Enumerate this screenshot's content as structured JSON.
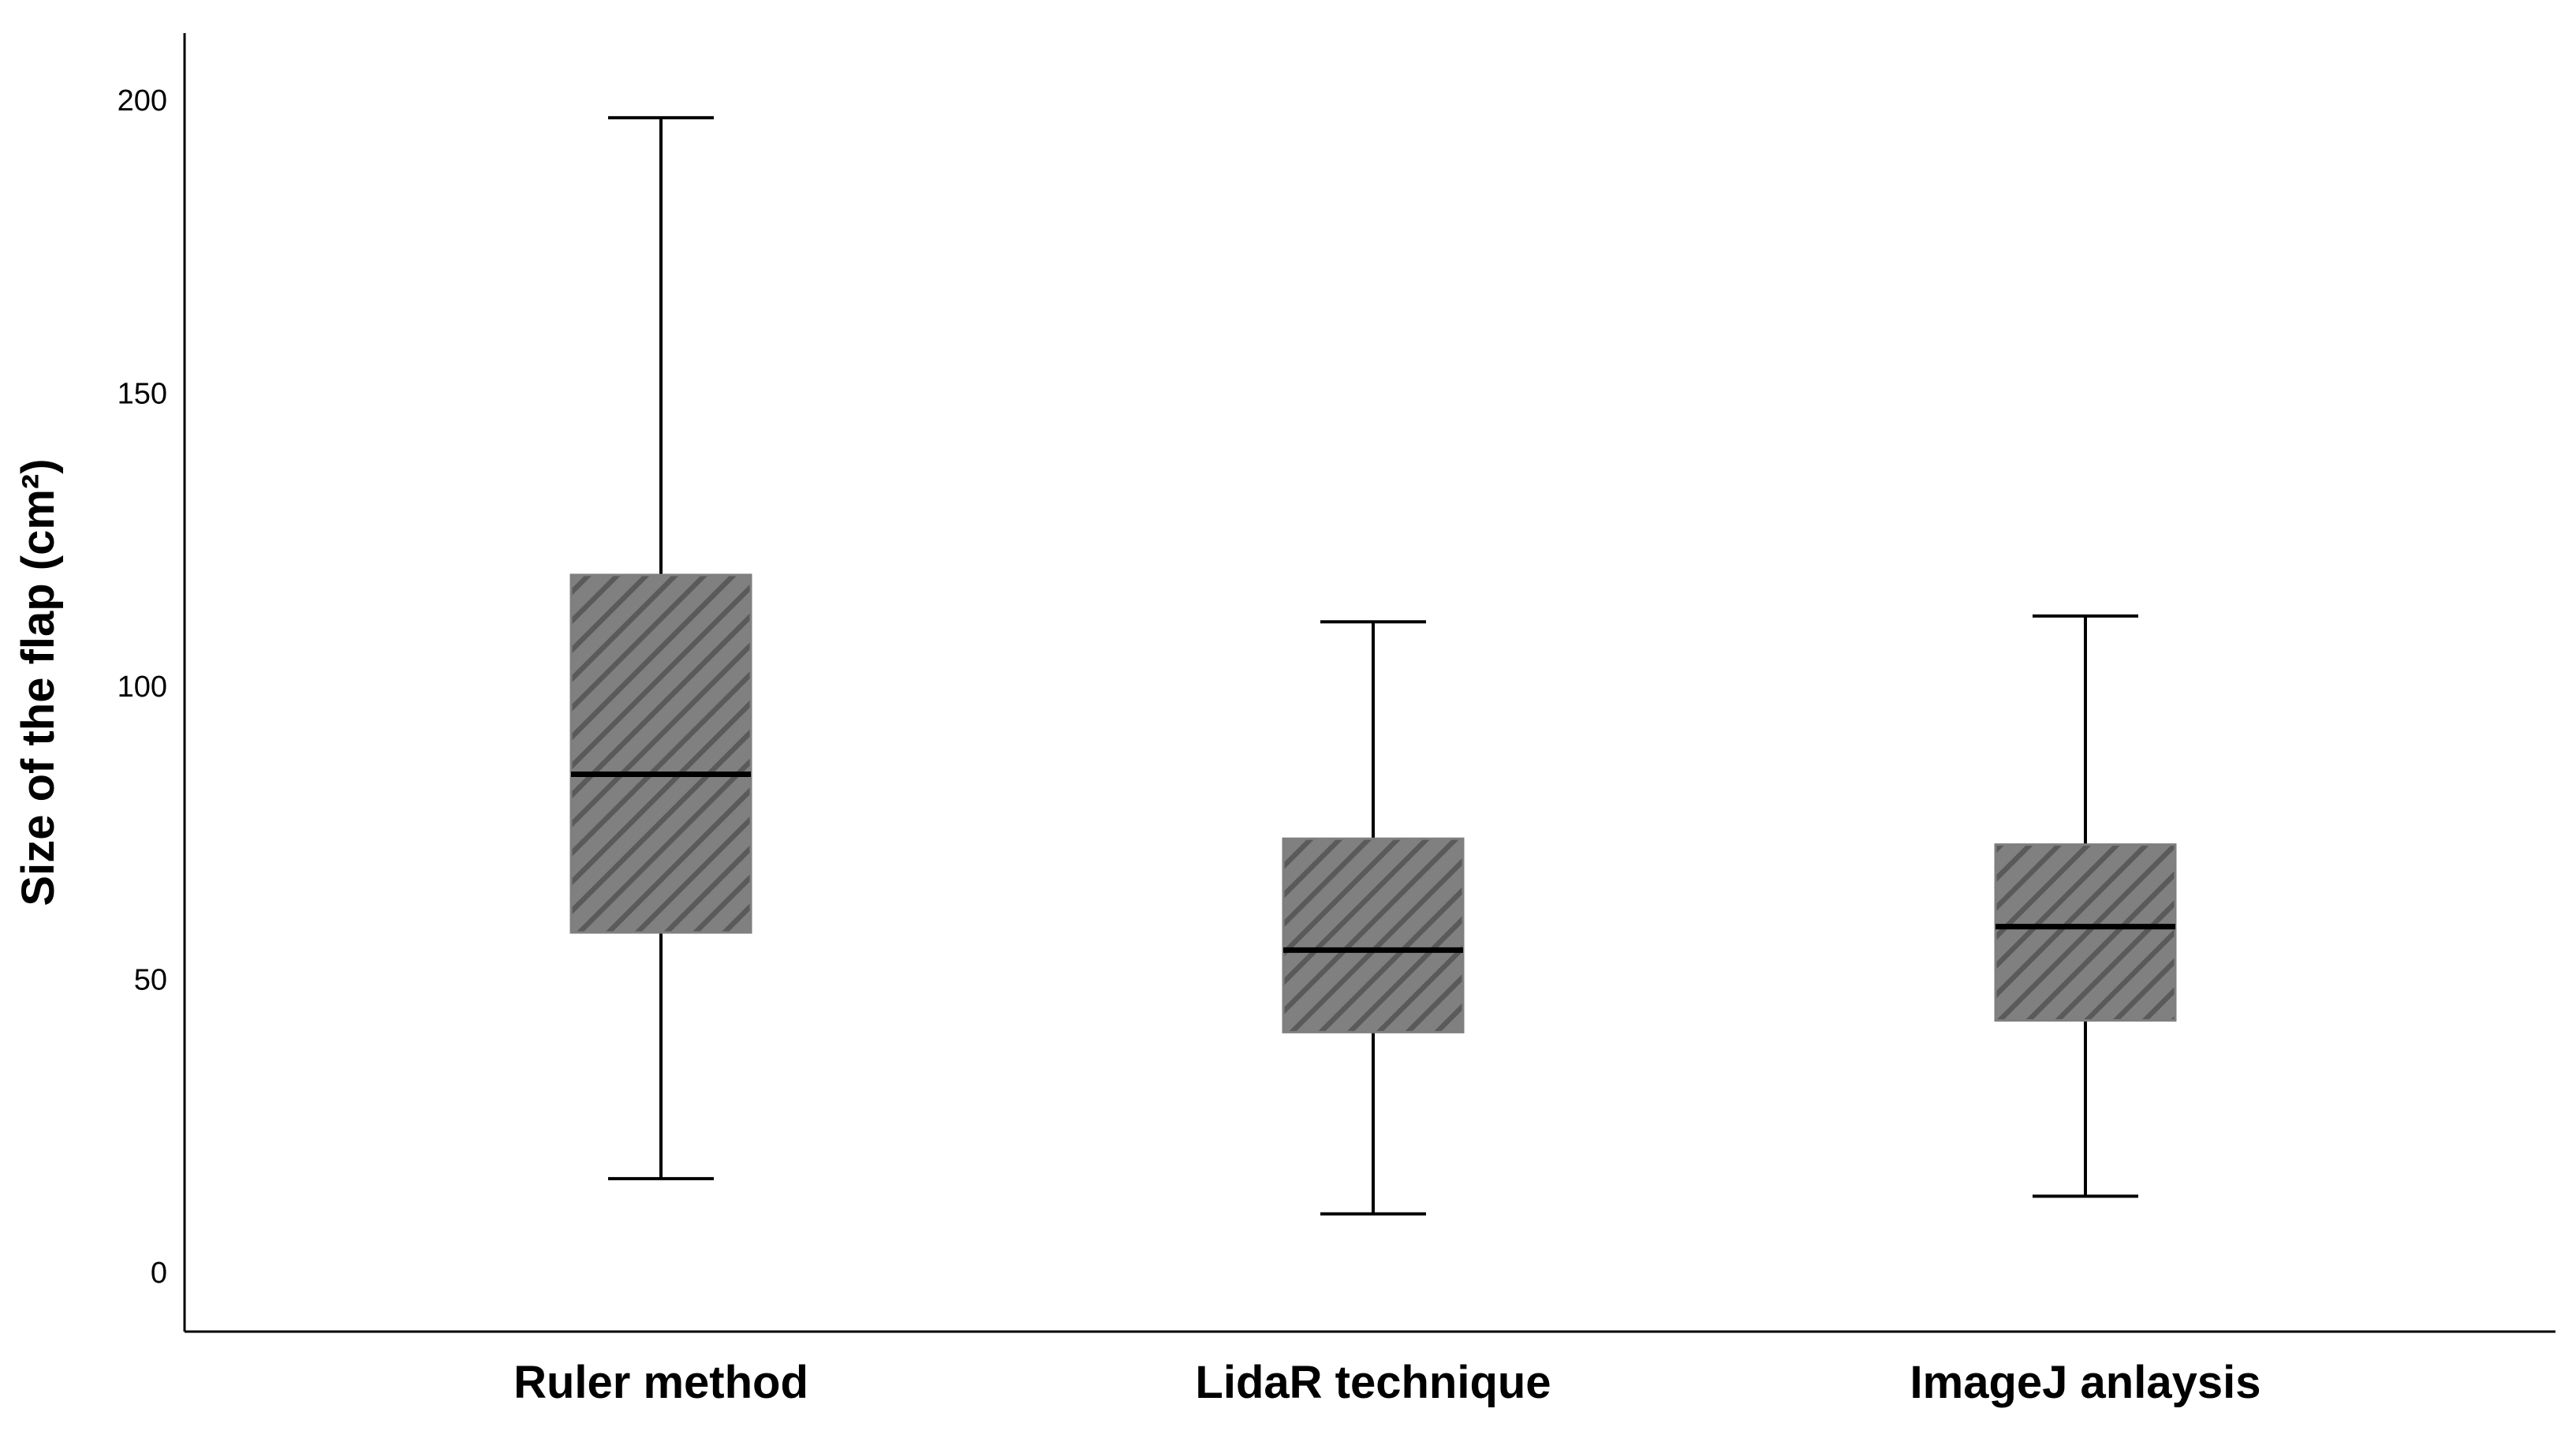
{
  "chart_data": {
    "type": "boxplot",
    "title": "",
    "xlabel": "",
    "ylabel": "Size of the flap (cm²)",
    "ylim": [
      -10,
      212
    ],
    "yticks": [
      "0",
      "50",
      "100",
      "150",
      "200"
    ],
    "grid": false,
    "fill_color": "#808080",
    "hatch_color": "#5a5a5a",
    "box_border_color": "#7f7f7f",
    "categories": [
      "Ruler method",
      "LidaR technique",
      "ImageJ anlaysis"
    ],
    "boxes": [
      {
        "category": "Ruler method",
        "min": 16,
        "q1": 58,
        "median": 85,
        "q3": 119,
        "max": 197
      },
      {
        "category": "LidaR technique",
        "min": 10,
        "q1": 41,
        "median": 55,
        "q3": 74,
        "max": 111
      },
      {
        "category": "ImageJ anlaysis",
        "min": 13,
        "q1": 43,
        "median": 59,
        "q3": 73,
        "max": 112
      }
    ]
  }
}
